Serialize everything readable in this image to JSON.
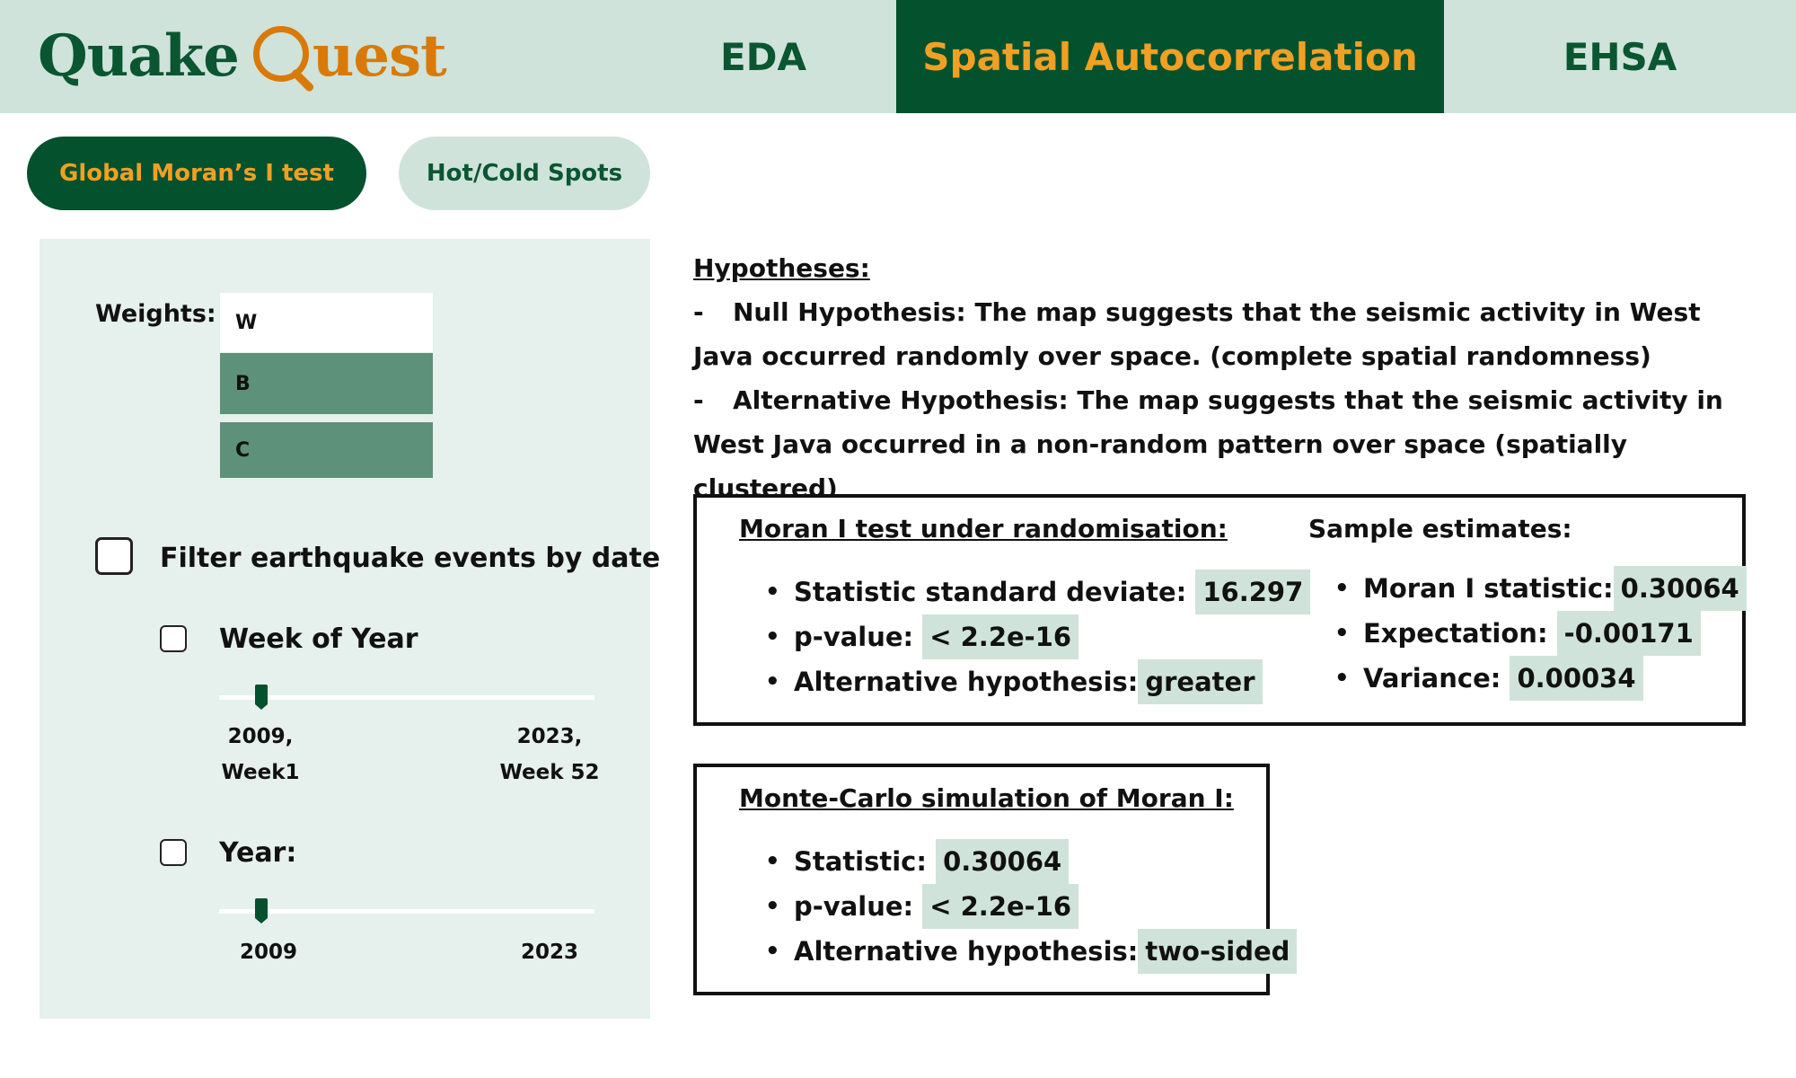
{
  "header": {
    "logo": {
      "part1": "Quake",
      "part2": "uest"
    },
    "tabs": [
      {
        "label": "EDA"
      },
      {
        "label": "Spatial Autocorrelation"
      },
      {
        "label": "EHSA"
      }
    ],
    "accent_color": "#04512e",
    "highlight_color": "#f0a023"
  },
  "subtabs": [
    {
      "label": "Global Moran’s I test"
    },
    {
      "label": "Hot/Cold Spots"
    }
  ],
  "sidebar": {
    "weights_label": "Weights:",
    "weights_options": [
      "W",
      "B",
      "C"
    ],
    "selected_weight": "W",
    "filter_label": "Filter earthquake events by date",
    "week": {
      "label": "Week of Year",
      "min_label_1": "2009,",
      "min_label_2": "Week1",
      "max_label_1": "2023,",
      "max_label_2": "Week 52"
    },
    "year": {
      "label": "Year:",
      "min_label": "2009",
      "max_label": "2023"
    }
  },
  "hypotheses": {
    "title": "Hypotheses:",
    "null": "Null Hypothesis: The map suggests that the seismic activity in West Java occurred randomly over space. (complete spatial randomness)",
    "alt": "Alternative Hypothesis: The map suggests that the seismic activity in West Java occurred in a non-random pattern over space (spatially clustered)"
  },
  "randomisation": {
    "title": "Moran I test under randomisation:",
    "items": [
      {
        "label": "Statistic standard deviate:",
        "value": "16.297"
      },
      {
        "label": "p-value:",
        "value": "< 2.2e-16"
      },
      {
        "label": "Alternative hypothesis:",
        "value": "greater"
      }
    ]
  },
  "estimates": {
    "title": "Sample estimates:",
    "items": [
      {
        "label": "Moran I statistic:",
        "value": "0.30064"
      },
      {
        "label": "Expectation:",
        "value": "-0.00171"
      },
      {
        "label": "Variance:",
        "value": "0.00034"
      }
    ]
  },
  "montecarlo": {
    "title": "Monte-Carlo simulation of Moran I:",
    "items": [
      {
        "label": "Statistic:",
        "value": "0.30064"
      },
      {
        "label": "p-value:",
        "value": "< 2.2e-16"
      },
      {
        "label": "Alternative hypothesis:",
        "value": "two-sided"
      }
    ]
  }
}
